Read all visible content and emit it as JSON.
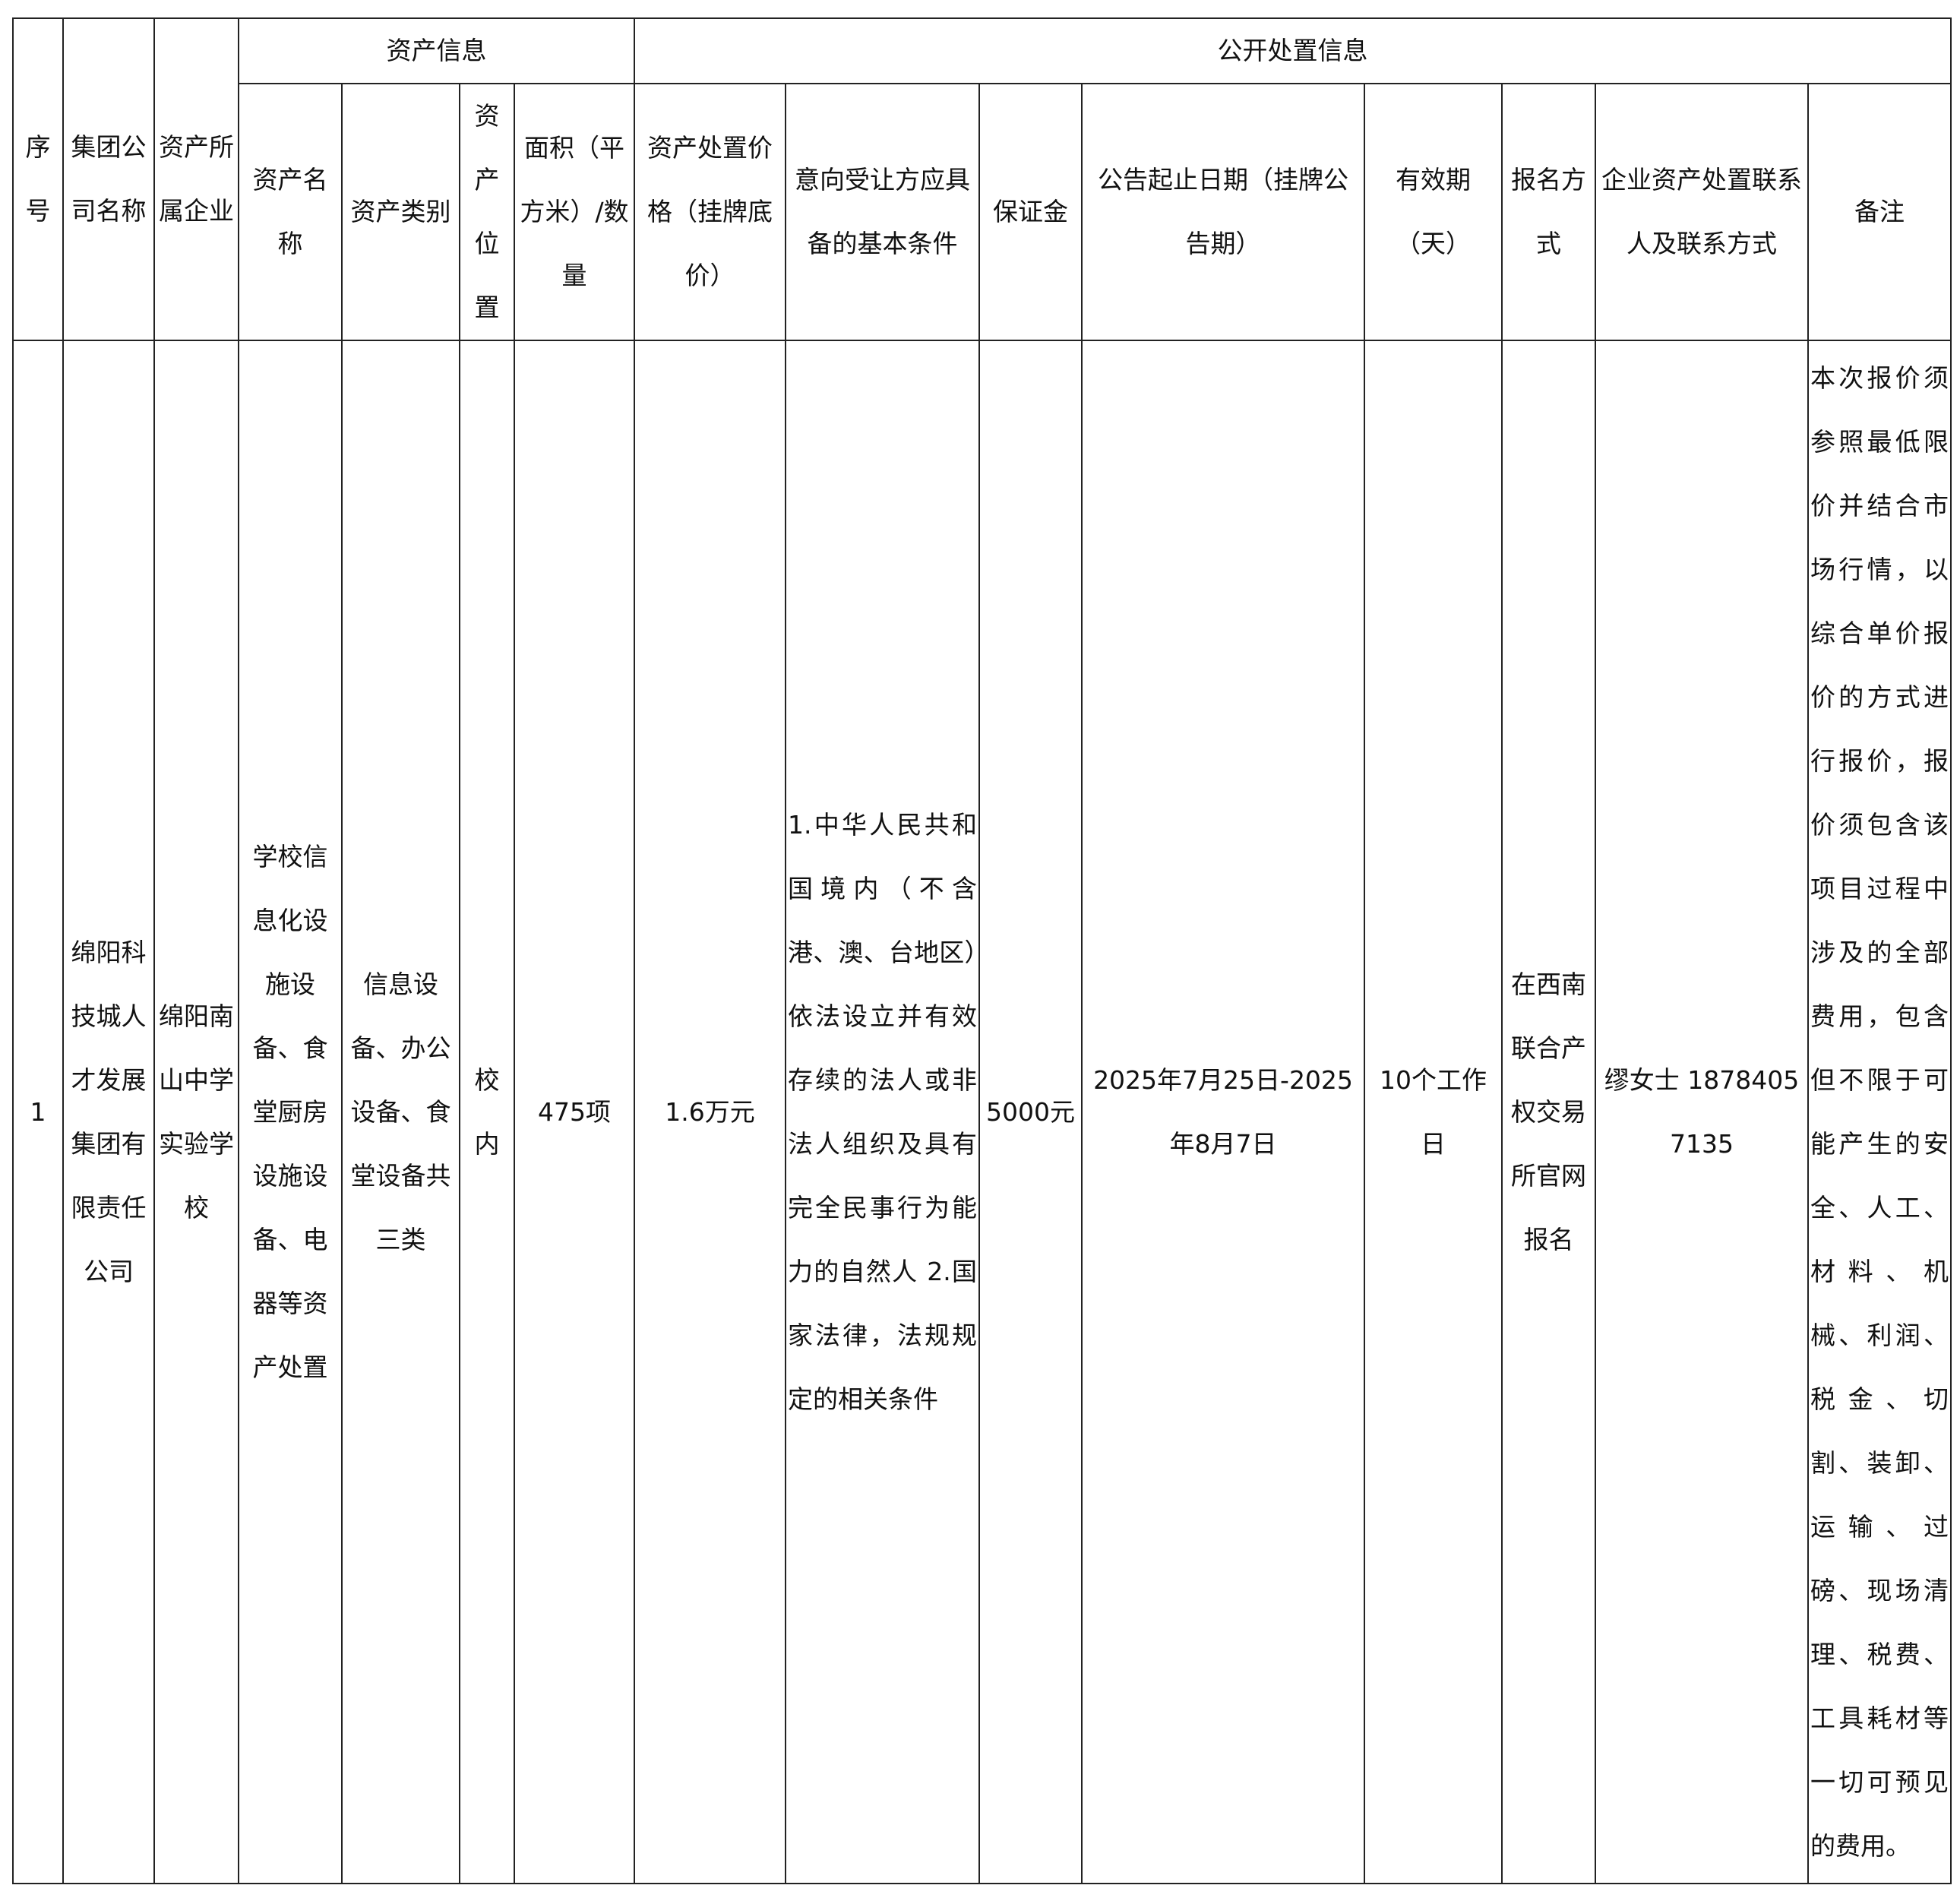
{
  "group_headers": {
    "asset_info": "资产信息",
    "disposal_info": "公开处置信息"
  },
  "columns": {
    "seq": "序号",
    "group_company": "集团公司名称",
    "owner_enterprise": "资产所属企业",
    "asset_name": "资产名称",
    "asset_category": "资产类别",
    "asset_location": "资产位置",
    "area_quantity": "面积（平方米）/数量",
    "price": "资产处置价格（挂牌底价）",
    "conditions": "意向受让方应具备的基本条件",
    "deposit": "保证金",
    "period": "公告起止日期（挂牌公告期）",
    "validity": "有效期（天）",
    "registration": "报名方式",
    "contact": "企业资产处置联系人及联系方式",
    "remarks": "备注"
  },
  "rows": [
    {
      "seq": "1",
      "group_company": "绵阳科技城人才发展集团有限责任公司",
      "owner_enterprise": "绵阳南山中学实验学校",
      "asset_name": "学校信息化设施设备、食堂厨房设施设备、电器等资产处置",
      "asset_category": "信息设备、办公设备、食堂设备共三类",
      "asset_location": "校内",
      "area_quantity": "475项",
      "price": "1.6万元",
      "conditions": "1.中华人民共和国境内（不含港、澳、台地区）依法设立并有效存续的法人或非法人组织及具有完全民事行为能力的自然人 2.国家法律，法规规定的相关条件",
      "deposit": "5000元",
      "period": "2025年7月25日-2025年8月7日",
      "validity": "10个工作日",
      "registration": "在西南联合产权交易所官网报名",
      "contact": "缪女士 18784057135",
      "remarks": "本次报价须参照最低限价并结合市场行情，以综合单价报价的方式进行报价，报价须包含该项目过程中涉及的全部费用，包含但不限于可能产生的安全、人工、材料、机械、利润、税金、切割、装卸、运输、过磅、现场清理、税费、工具耗材等一切可预见的费用。"
    }
  ]
}
